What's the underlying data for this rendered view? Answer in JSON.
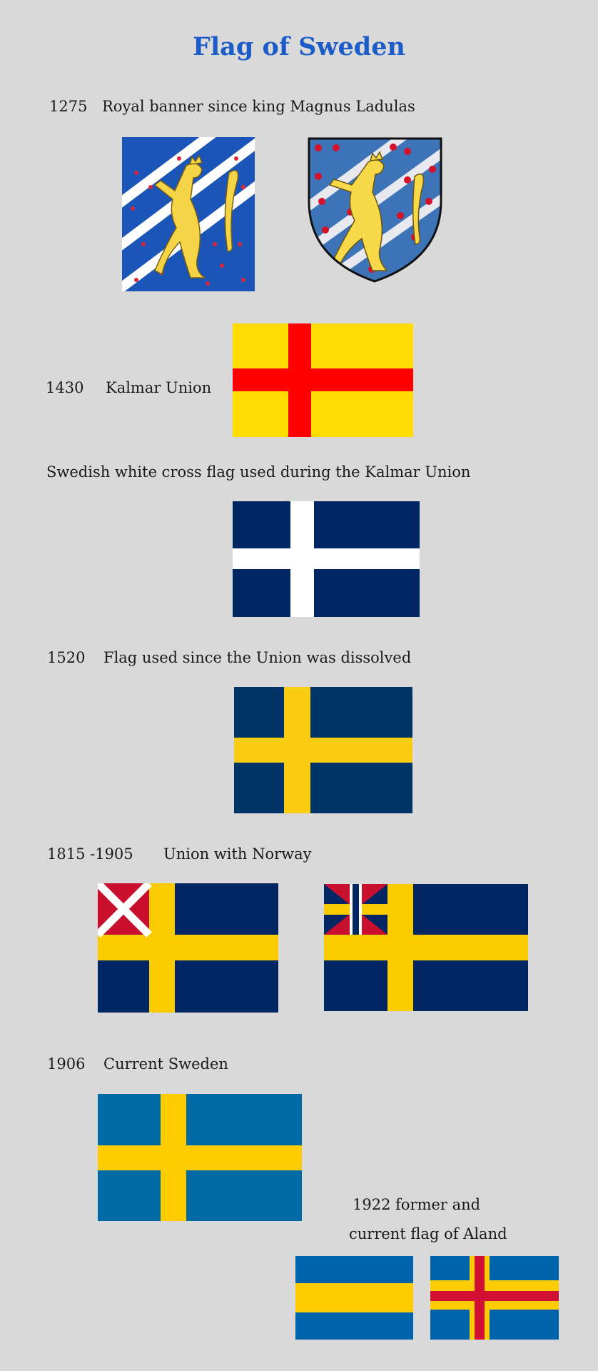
{
  "title": "Flag of Sweden",
  "sections": [
    {
      "year": "1275",
      "label": "Royal banner since king Magnus Ladulas"
    },
    {
      "year": "1430",
      "label": "Kalmar Union"
    },
    {
      "year": "",
      "label": "Swedish white cross flag used during the Kalmar Union"
    },
    {
      "year": "1520",
      "label": "Flag used since the Union was dissolved"
    },
    {
      "year": "1815 -1905",
      "label": "Union with Norway"
    },
    {
      "year": "1906",
      "label": "Current Sweden"
    },
    {
      "year": "",
      "label_line1": "1922 former and",
      "label_line2": "current flag of Aland"
    }
  ],
  "colors": {
    "title": "#1c5cc8",
    "swedish_blue_old": "#002664",
    "swedish_blue": "#006aa7",
    "swedish_yellow": "#fecc00",
    "kalmar_yellow": "#ffdd00",
    "kalmar_red": "#ff0000",
    "aland_red": "#d21034",
    "norway_red": "#c8102e",
    "banner_blue": "#1b55b8",
    "lion_gold": "#f5d547"
  },
  "images": [
    {
      "id": "royal-banner",
      "icon": "lion-banner"
    },
    {
      "id": "royal-shield",
      "icon": "lion-shield"
    },
    {
      "id": "kalmar-union-flag"
    },
    {
      "id": "white-cross-flag"
    },
    {
      "id": "flag-1520"
    },
    {
      "id": "union-flag-1815"
    },
    {
      "id": "union-flag-1844"
    },
    {
      "id": "flag-1906"
    },
    {
      "id": "aland-former-flag"
    },
    {
      "id": "aland-current-flag"
    }
  ]
}
